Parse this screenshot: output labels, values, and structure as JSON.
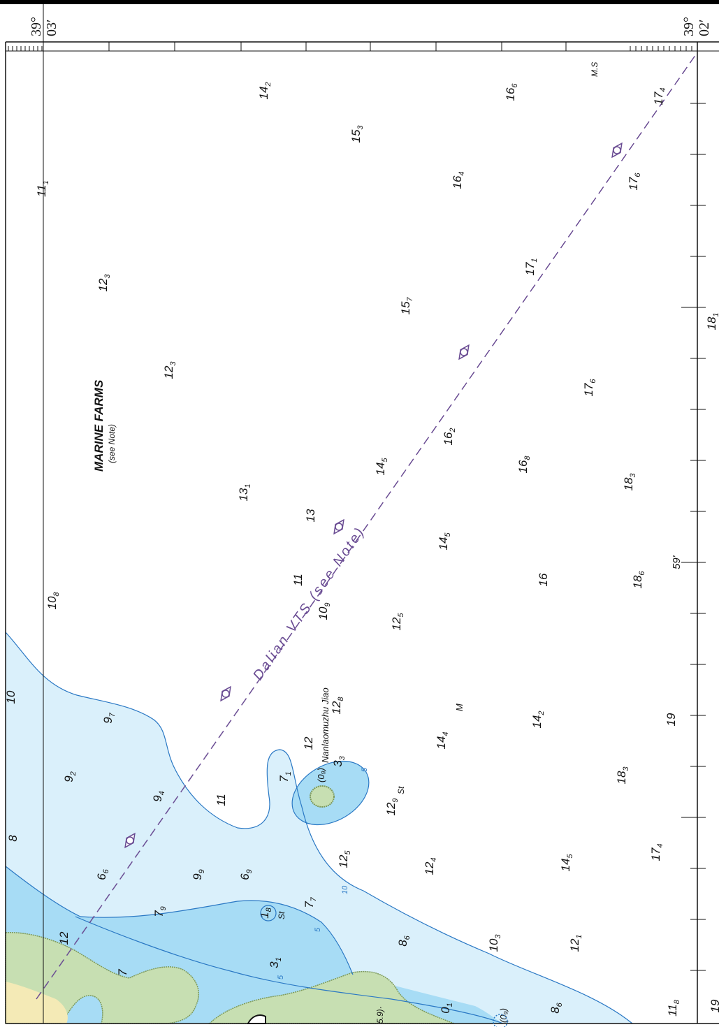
{
  "colors": {
    "land": "#c7dfb2",
    "land_edge": "#7e9a5a",
    "shallow": "#a7dcf5",
    "mid": "#daf0fb",
    "contour": "#2a78c4",
    "vts": "#6a4c93",
    "coast": "#f4eab6"
  },
  "labels": {
    "marine_farms": "MARINE FARMS",
    "marine_farms_note": "(see Note)",
    "vts": "Dalian VTS (see Note)",
    "island": "Nanlaomuzhu Jiao",
    "ms": "M.S",
    "m": "M",
    "lat_59": "59'",
    "paren_09": "(0₉)",
    "paren_69": "5.9)·"
  },
  "coordinates": {
    "top_left_deg": "39°",
    "top_left_min": "03′",
    "top_right_deg": "39°",
    "top_right_min": "02′"
  },
  "soundings": [
    {
      "id": "s1",
      "main": "14",
      "sub": "2"
    },
    {
      "id": "s2",
      "main": "16",
      "sub": "6"
    },
    {
      "id": "s3",
      "main": "17",
      "sub": "4"
    },
    {
      "id": "s4",
      "main": "15",
      "sub": "3"
    },
    {
      "id": "s5",
      "main": "11",
      "sub": "1"
    },
    {
      "id": "s6",
      "main": "16",
      "sub": "4"
    },
    {
      "id": "s7",
      "main": "17",
      "sub": "6"
    },
    {
      "id": "s8",
      "main": "12",
      "sub": "3"
    },
    {
      "id": "s9",
      "main": "17",
      "sub": "1"
    },
    {
      "id": "s10",
      "main": "15",
      "sub": "7"
    },
    {
      "id": "s11",
      "main": "18",
      "sub": "1"
    },
    {
      "id": "s12",
      "main": "12",
      "sub": "3"
    },
    {
      "id": "s13",
      "main": "17",
      "sub": "6"
    },
    {
      "id": "s14",
      "main": "16",
      "sub": "2"
    },
    {
      "id": "s15",
      "main": "16",
      "sub": "8"
    },
    {
      "id": "s16",
      "main": "14",
      "sub": "5"
    },
    {
      "id": "s17",
      "main": "18",
      "sub": "3"
    },
    {
      "id": "s18",
      "main": "13",
      "sub": "1"
    },
    {
      "id": "s19",
      "main": "13",
      "sub": ""
    },
    {
      "id": "s20",
      "main": "14",
      "sub": "5"
    },
    {
      "id": "s21",
      "main": "10",
      "sub": "8"
    },
    {
      "id": "s22",
      "main": "11",
      "sub": ""
    },
    {
      "id": "s23",
      "main": "10",
      "sub": "9"
    },
    {
      "id": "s24",
      "main": "16",
      "sub": ""
    },
    {
      "id": "s25",
      "main": "18",
      "sub": "6"
    },
    {
      "id": "s26",
      "main": "12",
      "sub": "5"
    },
    {
      "id": "s27",
      "main": "10",
      "sub": ""
    },
    {
      "id": "s28",
      "main": "9",
      "sub": "7"
    },
    {
      "id": "s29",
      "main": "12",
      "sub": "8"
    },
    {
      "id": "s30",
      "main": "19",
      "sub": ""
    },
    {
      "id": "s31",
      "main": "14",
      "sub": "4"
    },
    {
      "id": "s32",
      "main": "14",
      "sub": "2"
    },
    {
      "id": "s33",
      "main": "12",
      "sub": ""
    },
    {
      "id": "s34",
      "main": "9",
      "sub": "2"
    },
    {
      "id": "s35",
      "main": "7",
      "sub": "1"
    },
    {
      "id": "s36",
      "main": "18",
      "sub": "3"
    },
    {
      "id": "s37",
      "main": "9",
      "sub": "4"
    },
    {
      "id": "s38",
      "main": "11",
      "sub": ""
    },
    {
      "id": "s39",
      "main": "12",
      "sub": "9"
    },
    {
      "id": "s40",
      "main": "3",
      "sub": "3"
    },
    {
      "id": "s41",
      "main": "8",
      "sub": ""
    },
    {
      "id": "s42",
      "main": "6",
      "sub": "6"
    },
    {
      "id": "s43",
      "main": "9",
      "sub": "9"
    },
    {
      "id": "s44",
      "main": "6",
      "sub": "9"
    },
    {
      "id": "s45",
      "main": "12",
      "sub": "5"
    },
    {
      "id": "s46",
      "main": "12",
      "sub": "4"
    },
    {
      "id": "s47",
      "main": "14",
      "sub": "5"
    },
    {
      "id": "s48",
      "main": "17",
      "sub": "4"
    },
    {
      "id": "s49",
      "main": "7",
      "sub": "9"
    },
    {
      "id": "s50",
      "main": "7",
      "sub": "7"
    },
    {
      "id": "s51",
      "main": "1",
      "sub": "8"
    },
    {
      "id": "s52",
      "main": "8",
      "sub": "6"
    },
    {
      "id": "s53",
      "main": "10",
      "sub": "3"
    },
    {
      "id": "s54",
      "main": "12",
      "sub": "1"
    },
    {
      "id": "s55",
      "main": "12",
      "sub": ""
    },
    {
      "id": "s56",
      "main": "3",
      "sub": "1"
    },
    {
      "id": "s57",
      "main": "0",
      "sub": "1"
    },
    {
      "id": "s58",
      "main": "8",
      "sub": "6"
    },
    {
      "id": "s59",
      "main": "11",
      "sub": "8"
    },
    {
      "id": "s60",
      "main": "7",
      "sub": ""
    },
    {
      "id": "s61",
      "main": "19",
      "sub": ""
    }
  ],
  "contour_labels": [
    {
      "id": "c1",
      "text": "5"
    },
    {
      "id": "c2",
      "text": "10"
    },
    {
      "id": "c3",
      "text": "5"
    },
    {
      "id": "c4",
      "text": "5"
    }
  ],
  "seabed": [
    {
      "id": "b1",
      "text": "St"
    },
    {
      "id": "b2",
      "text": "St"
    }
  ]
}
